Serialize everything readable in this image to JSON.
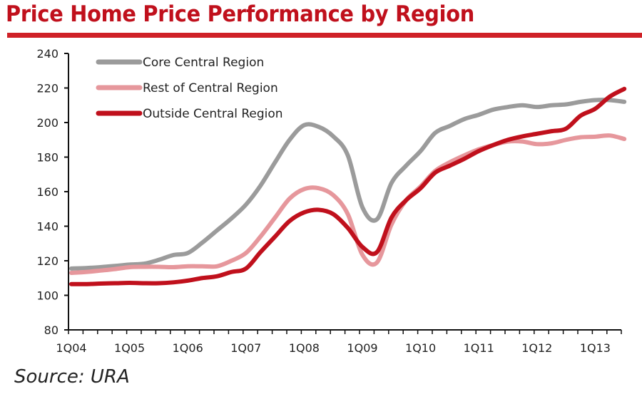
{
  "title": "Price Home Price Performance by Region",
  "source": "Source: URA",
  "chart_data": {
    "type": "line",
    "title": "Price Home Price Performance by Region",
    "xlabel": "",
    "ylabel": "",
    "ylim": [
      80,
      240
    ],
    "yticks": [
      80,
      100,
      120,
      140,
      160,
      180,
      200,
      220,
      240
    ],
    "xtick_labels": [
      "1Q04",
      "1Q05",
      "1Q06",
      "1Q07",
      "1Q08",
      "1Q09",
      "1Q10",
      "1Q11",
      "1Q12",
      "1Q13"
    ],
    "x": [
      "1Q04",
      "2Q04",
      "3Q04",
      "4Q04",
      "1Q05",
      "2Q05",
      "3Q05",
      "4Q05",
      "1Q06",
      "2Q06",
      "3Q06",
      "4Q06",
      "1Q07",
      "2Q07",
      "3Q07",
      "4Q07",
      "1Q08",
      "2Q08",
      "3Q08",
      "4Q08",
      "1Q09",
      "2Q09",
      "3Q09",
      "4Q09",
      "1Q10",
      "2Q10",
      "3Q10",
      "4Q10",
      "1Q11",
      "2Q11",
      "3Q11",
      "4Q11",
      "1Q12",
      "2Q12",
      "3Q12",
      "4Q12",
      "1Q13",
      "2Q13",
      "3Q13"
    ],
    "grid": false,
    "legend_position": "top-left",
    "series": [
      {
        "name": "Core Central Region",
        "color": "#9b9b9b",
        "values": [
          115.5,
          115.8,
          116.3,
          117,
          117.8,
          118.3,
          120.5,
          123.3,
          124.5,
          130.5,
          137.5,
          144.5,
          152.5,
          163.5,
          177,
          190,
          198.5,
          197.5,
          192,
          181,
          151,
          144,
          165,
          175,
          183.5,
          194,
          198,
          202,
          204.5,
          207.5,
          209,
          210,
          209,
          210,
          210.5,
          212,
          213,
          213,
          212
        ]
      },
      {
        "name": "Rest of Central Region",
        "color": "#e6979c",
        "values": [
          113,
          113.5,
          114.3,
          115.2,
          116.3,
          116.5,
          116.5,
          116.3,
          116.8,
          116.8,
          116.8,
          120,
          124.5,
          134,
          145,
          156,
          161.5,
          162,
          158,
          147,
          123.5,
          119,
          141,
          155,
          163,
          172,
          177,
          181,
          184.5,
          187,
          189,
          189,
          187.5,
          188,
          190,
          191.5,
          191.8,
          192.5,
          190.5
        ]
      },
      {
        "name": "Outside Central Region",
        "color": "#c0101c",
        "values": [
          106.5,
          106.5,
          106.8,
          107,
          107.2,
          107,
          107,
          107.5,
          108.5,
          110,
          111,
          113.5,
          115.5,
          125,
          134,
          143,
          148,
          149.5,
          147,
          139,
          128,
          125,
          145,
          155,
          162,
          171,
          175,
          179,
          183.5,
          187,
          190,
          192,
          193.5,
          195,
          196.5,
          204,
          208,
          215,
          219.5
        ]
      }
    ]
  }
}
